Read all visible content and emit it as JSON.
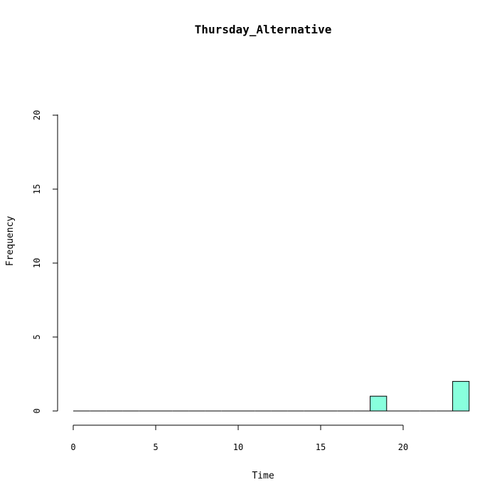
{
  "chart_data": {
    "type": "bar",
    "title": "Thursday_Alternative",
    "xlabel": "Time",
    "ylabel": "Frequency",
    "xlim": [
      0,
      24
    ],
    "ylim": [
      0,
      20
    ],
    "xticks": [
      "0",
      "5",
      "10",
      "15",
      "20"
    ],
    "yticks": [
      "0",
      "5",
      "10",
      "15",
      "20"
    ],
    "bar_color": "#88ffdd",
    "bins": [
      {
        "start": 0,
        "end": 1,
        "value": 0
      },
      {
        "start": 1,
        "end": 2,
        "value": 0
      },
      {
        "start": 2,
        "end": 3,
        "value": 0
      },
      {
        "start": 3,
        "end": 4,
        "value": 0
      },
      {
        "start": 4,
        "end": 5,
        "value": 0
      },
      {
        "start": 5,
        "end": 6,
        "value": 0
      },
      {
        "start": 6,
        "end": 7,
        "value": 0
      },
      {
        "start": 7,
        "end": 8,
        "value": 0
      },
      {
        "start": 8,
        "end": 9,
        "value": 0
      },
      {
        "start": 9,
        "end": 10,
        "value": 0
      },
      {
        "start": 10,
        "end": 11,
        "value": 0
      },
      {
        "start": 11,
        "end": 12,
        "value": 0
      },
      {
        "start": 12,
        "end": 13,
        "value": 0
      },
      {
        "start": 13,
        "end": 14,
        "value": 0
      },
      {
        "start": 14,
        "end": 15,
        "value": 0
      },
      {
        "start": 15,
        "end": 16,
        "value": 0
      },
      {
        "start": 16,
        "end": 17,
        "value": 0
      },
      {
        "start": 17,
        "end": 18,
        "value": 0
      },
      {
        "start": 18,
        "end": 19,
        "value": 1
      },
      {
        "start": 19,
        "end": 20,
        "value": 0
      },
      {
        "start": 20,
        "end": 21,
        "value": 0
      },
      {
        "start": 21,
        "end": 22,
        "value": 0
      },
      {
        "start": 22,
        "end": 23,
        "value": 0
      },
      {
        "start": 23,
        "end": 24,
        "value": 2
      }
    ],
    "grid": false,
    "legend": "none"
  }
}
